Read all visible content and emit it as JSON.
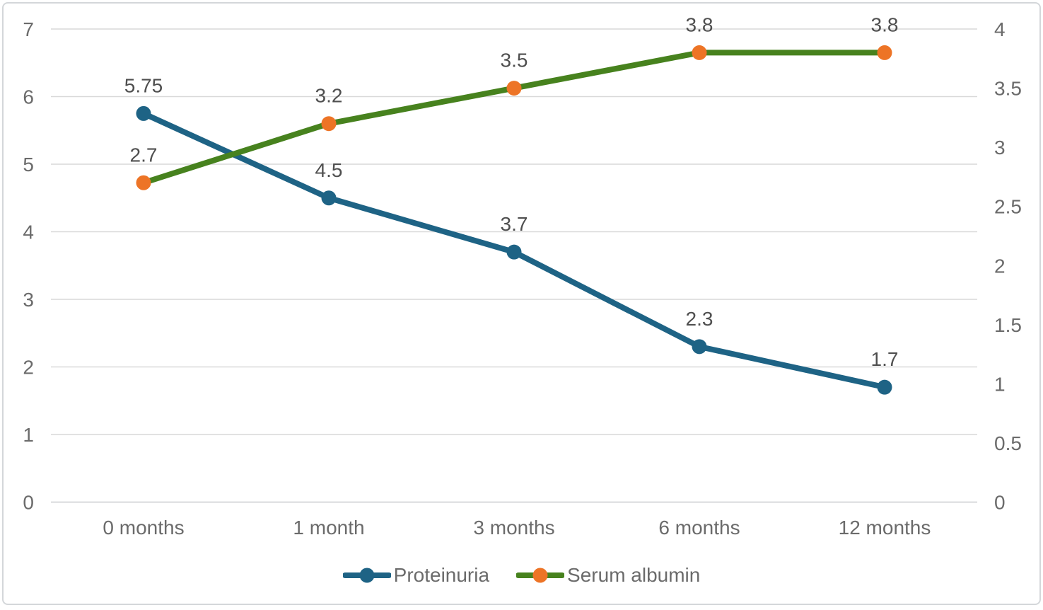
{
  "chart_data": {
    "type": "line",
    "categories": [
      "0 months",
      "1 month",
      "3 months",
      "6 months",
      "12 months"
    ],
    "series": [
      {
        "name": "Proteinuria",
        "axis": "left",
        "values": [
          5.75,
          4.5,
          3.7,
          2.3,
          1.7
        ],
        "data_labels": [
          "5.75",
          "4.5",
          "3.7",
          "2.3",
          "1.7"
        ],
        "line_color": "#1e6385",
        "marker_color": "#1e6385"
      },
      {
        "name": "Serum albumin",
        "axis": "right",
        "values": [
          2.7,
          3.2,
          3.5,
          3.8,
          3.8
        ],
        "data_labels": [
          "2.7",
          "3.2",
          "3.5",
          "3.8",
          "3.8"
        ],
        "line_color": "#47821e",
        "marker_color": "#ed7426"
      }
    ],
    "left_axis": {
      "min": 0,
      "max": 7,
      "step": 1,
      "ticks": [
        "0",
        "1",
        "2",
        "3",
        "4",
        "5",
        "6",
        "7"
      ]
    },
    "right_axis": {
      "min": 0,
      "max": 4,
      "step": 0.5,
      "ticks": [
        "0",
        "0.5",
        "1",
        "1.5",
        "2",
        "2.5",
        "3",
        "3.5",
        "4"
      ]
    },
    "title": "",
    "xlabel": "",
    "ylabel": "",
    "grid": true,
    "legend_position": "bottom",
    "colors": {
      "grid": "#d9d9d9",
      "baseline": "#c9cccf",
      "tick_text": "#6b6b6b",
      "data_label_text": "#4f4f4f",
      "border": "#d4d7da",
      "background": "#ffffff"
    }
  }
}
